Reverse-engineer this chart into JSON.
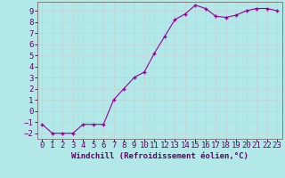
{
  "x": [
    0,
    1,
    2,
    3,
    4,
    5,
    6,
    7,
    8,
    9,
    10,
    11,
    12,
    13,
    14,
    15,
    16,
    17,
    18,
    19,
    20,
    21,
    22,
    23
  ],
  "y": [
    -1.2,
    -2.0,
    -2.0,
    -2.0,
    -1.2,
    -1.2,
    -1.2,
    1.0,
    2.0,
    3.0,
    3.5,
    5.2,
    6.7,
    8.2,
    8.7,
    9.5,
    9.2,
    8.5,
    8.4,
    8.6,
    9.0,
    9.2,
    9.2,
    9.0
  ],
  "line_color": "#990099",
  "marker": "+",
  "bg_color": "#b2e8e8",
  "grid_color": "#c0d8d8",
  "xlabel": "Windchill (Refroidissement éolien,°C)",
  "xlim": [
    -0.5,
    23.5
  ],
  "ylim": [
    -2.5,
    9.8
  ],
  "yticks": [
    -2,
    -1,
    0,
    1,
    2,
    3,
    4,
    5,
    6,
    7,
    8,
    9
  ],
  "xticks": [
    0,
    1,
    2,
    3,
    4,
    5,
    6,
    7,
    8,
    9,
    10,
    11,
    12,
    13,
    14,
    15,
    16,
    17,
    18,
    19,
    20,
    21,
    22,
    23
  ],
  "label_color": "#660066",
  "tick_color": "#660066",
  "spine_color": "#808080",
  "font": "monospace",
  "fontsize_xlabel": 6.5,
  "fontsize_tick": 6.5
}
